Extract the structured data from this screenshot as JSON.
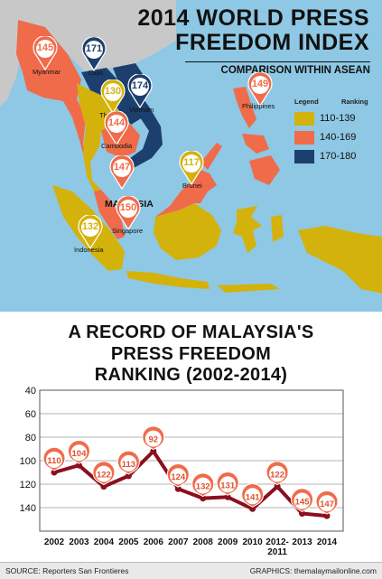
{
  "header": {
    "title_line1": "2014 WORLD PRESS",
    "title_line2": "FREEDOM INDEX",
    "subtitle": "COMPARISON WITHIN ASEAN"
  },
  "legend": {
    "title": "Legend",
    "ranking_label": "Ranking",
    "items": [
      {
        "range": "110-139",
        "color": "#d4b20c"
      },
      {
        "range": "140-169",
        "color": "#f06b4a"
      },
      {
        "range": "170-180",
        "color": "#1d3f6e"
      }
    ]
  },
  "map": {
    "land_color": "#d4b20c",
    "neighbor_color": "#c8c8c8",
    "sea_color": "#8ec8e4",
    "focus_label": "MALAYSIA",
    "countries": [
      {
        "name": "Myanmar",
        "rank": "145",
        "band": 1
      },
      {
        "name": "Laos",
        "rank": "171",
        "band": 2
      },
      {
        "name": "Vietnam",
        "rank": "174",
        "band": 2
      },
      {
        "name": "Thailand",
        "rank": "130",
        "band": 0
      },
      {
        "name": "Cambodia",
        "rank": "144",
        "band": 1
      },
      {
        "name": "Philippines",
        "rank": "149",
        "band": 1
      },
      {
        "name": "Malaysia",
        "rank": "147",
        "band": 1
      },
      {
        "name": "Brunei",
        "rank": "117",
        "band": 0
      },
      {
        "name": "Singapore",
        "rank": "150",
        "band": 1
      },
      {
        "name": "Indonesia",
        "rank": "132",
        "band": 0
      }
    ]
  },
  "chart_title": {
    "line1": "A RECORD OF MALAYSIA'S",
    "line2": "PRESS FREEDOM",
    "line3": "RANKING (2002-2014)"
  },
  "chart_data": {
    "type": "line",
    "categories": [
      "2002",
      "2003",
      "2004",
      "2005",
      "2006",
      "2007",
      "2008",
      "2009",
      "2010",
      "2012-2011",
      "2013",
      "2014"
    ],
    "values": [
      110,
      104,
      122,
      113,
      92,
      124,
      132,
      131,
      141,
      122,
      145,
      147
    ],
    "y_ticks": [
      "40",
      "60",
      "80",
      "100",
      "120",
      "140"
    ],
    "ylim": [
      40,
      160
    ],
    "y_inverted": true,
    "grid": true,
    "line_color": "#8b0f1e",
    "marker_color": "#f06b4a"
  },
  "footer": {
    "source": "SOURCE: Reporters San Frontieres",
    "credit": "GRAPHICS: themalaymailonline.com"
  }
}
